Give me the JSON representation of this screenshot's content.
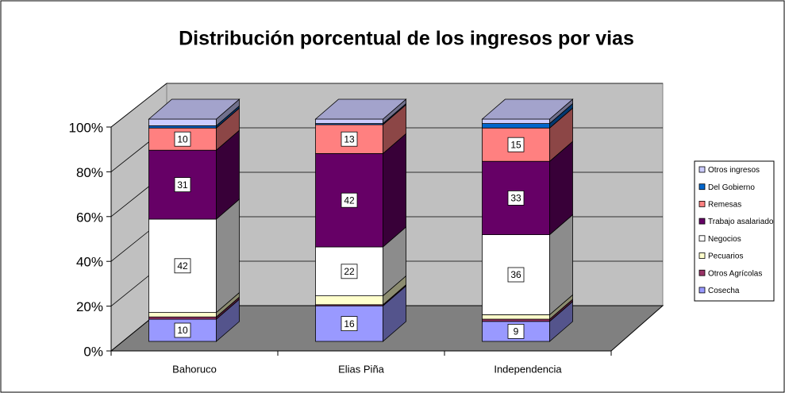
{
  "chart_data": {
    "type": "bar3d_stacked",
    "title": "Distribución porcentual de los ingresos por vias",
    "categories": [
      "Bahoruco",
      "Elias Piña",
      "Independencia"
    ],
    "series": [
      {
        "name": "Cosecha",
        "color": "#9999ff",
        "values": [
          10,
          16,
          9
        ],
        "labels": true
      },
      {
        "name": "Otros Agrícolas",
        "color": "#993366",
        "values": [
          1,
          0.5,
          1
        ]
      },
      {
        "name": "Pecuarios",
        "color": "#ffffcc",
        "values": [
          2,
          4,
          2
        ]
      },
      {
        "name": "Negocios",
        "color": "#ffffff",
        "values": [
          42,
          22,
          36
        ],
        "labels": true
      },
      {
        "name": "Trabajo asalariado",
        "color": "#660066",
        "values": [
          31,
          42,
          33
        ],
        "labels": true
      },
      {
        "name": "Remesas",
        "color": "#ff8080",
        "values": [
          10,
          13,
          15
        ],
        "labels": true
      },
      {
        "name": "Del Gobierno",
        "color": "#0066cc",
        "values": [
          1,
          0.5,
          2
        ]
      },
      {
        "name": "Otros ingresos",
        "color": "#ccccff",
        "values": [
          3,
          2,
          2
        ]
      }
    ],
    "ylim": [
      0,
      100
    ],
    "yticks": [
      {
        "value": 0,
        "label": "0%"
      },
      {
        "value": 20,
        "label": "20%"
      },
      {
        "value": 40,
        "label": "40%"
      },
      {
        "value": 60,
        "label": "60%"
      },
      {
        "value": 80,
        "label": "80%"
      },
      {
        "value": 100,
        "label": "100%"
      }
    ],
    "grid": true,
    "legend": "right"
  }
}
